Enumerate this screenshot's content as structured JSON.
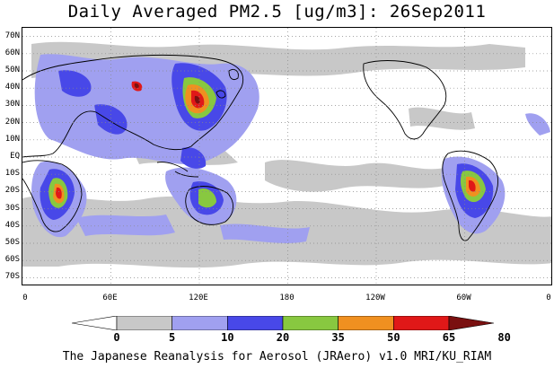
{
  "title": "Daily Averaged PM2.5 [ug/m3]: 26Sep2011",
  "footer": "The Japanese Reanalysis for Aerosol (JRAero) v1.0 MRI/KU_RIAM",
  "map": {
    "projection": "lat-lon, Pacific-centered",
    "lon_range": [
      0,
      360
    ],
    "lat_range": [
      -75,
      75
    ],
    "lat_ticks": [
      "70N",
      "60N",
      "50N",
      "40N",
      "30N",
      "20N",
      "10N",
      "EQ",
      "10S",
      "20S",
      "30S",
      "40S",
      "50S",
      "60S",
      "70S"
    ],
    "lon_ticks": [
      "0",
      "60E",
      "120E",
      "180",
      "120W",
      "60W",
      "0"
    ],
    "gridlines": "dotted"
  },
  "colorbar": {
    "levels": [
      "0",
      "5",
      "10",
      "20",
      "35",
      "50",
      "65",
      "80"
    ],
    "colors": [
      "#ffffff",
      "#c8c8c8",
      "#a0a0f0",
      "#4848e8",
      "#88c840",
      "#f09020",
      "#e01818",
      "#7a1010"
    ]
  }
}
